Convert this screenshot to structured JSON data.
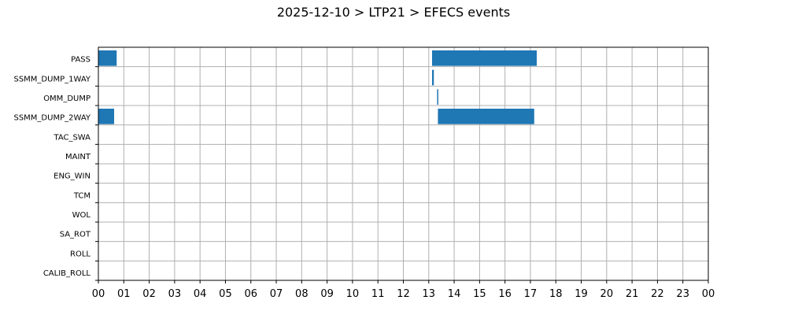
{
  "chart_data": {
    "type": "bar",
    "orientation": "horizontal",
    "title": "2025-12-10 > LTP21 > EFECS events",
    "xlabel": "",
    "ylabel": "",
    "grid": true,
    "bar_color": "#1f77b4",
    "grid_color": "#b0b0b0",
    "xlim": [
      0,
      24
    ],
    "x_tick_labels": [
      "00",
      "01",
      "02",
      "03",
      "04",
      "05",
      "06",
      "07",
      "08",
      "09",
      "10",
      "11",
      "12",
      "13",
      "14",
      "15",
      "16",
      "17",
      "18",
      "19",
      "20",
      "21",
      "22",
      "23",
      "00"
    ],
    "categories": [
      "PASS",
      "SSMM_DUMP_1WAY",
      "OMM_DUMP",
      "SSMM_DUMP_2WAY",
      "TAC_SWA",
      "MAINT",
      "ENG_WIN",
      "TCM",
      "WOL",
      "SA_ROT",
      "ROLL",
      "CALIB_ROLL"
    ],
    "events": [
      {
        "category": "PASS",
        "start": 0.0,
        "end": 0.72
      },
      {
        "category": "PASS",
        "start": 13.13,
        "end": 17.25
      },
      {
        "category": "SSMM_DUMP_1WAY",
        "start": 13.13,
        "end": 13.2
      },
      {
        "category": "OMM_DUMP",
        "start": 13.33,
        "end": 13.36
      },
      {
        "category": "SSMM_DUMP_2WAY",
        "start": 0.0,
        "end": 0.62
      },
      {
        "category": "SSMM_DUMP_2WAY",
        "start": 13.36,
        "end": 17.15
      }
    ]
  }
}
